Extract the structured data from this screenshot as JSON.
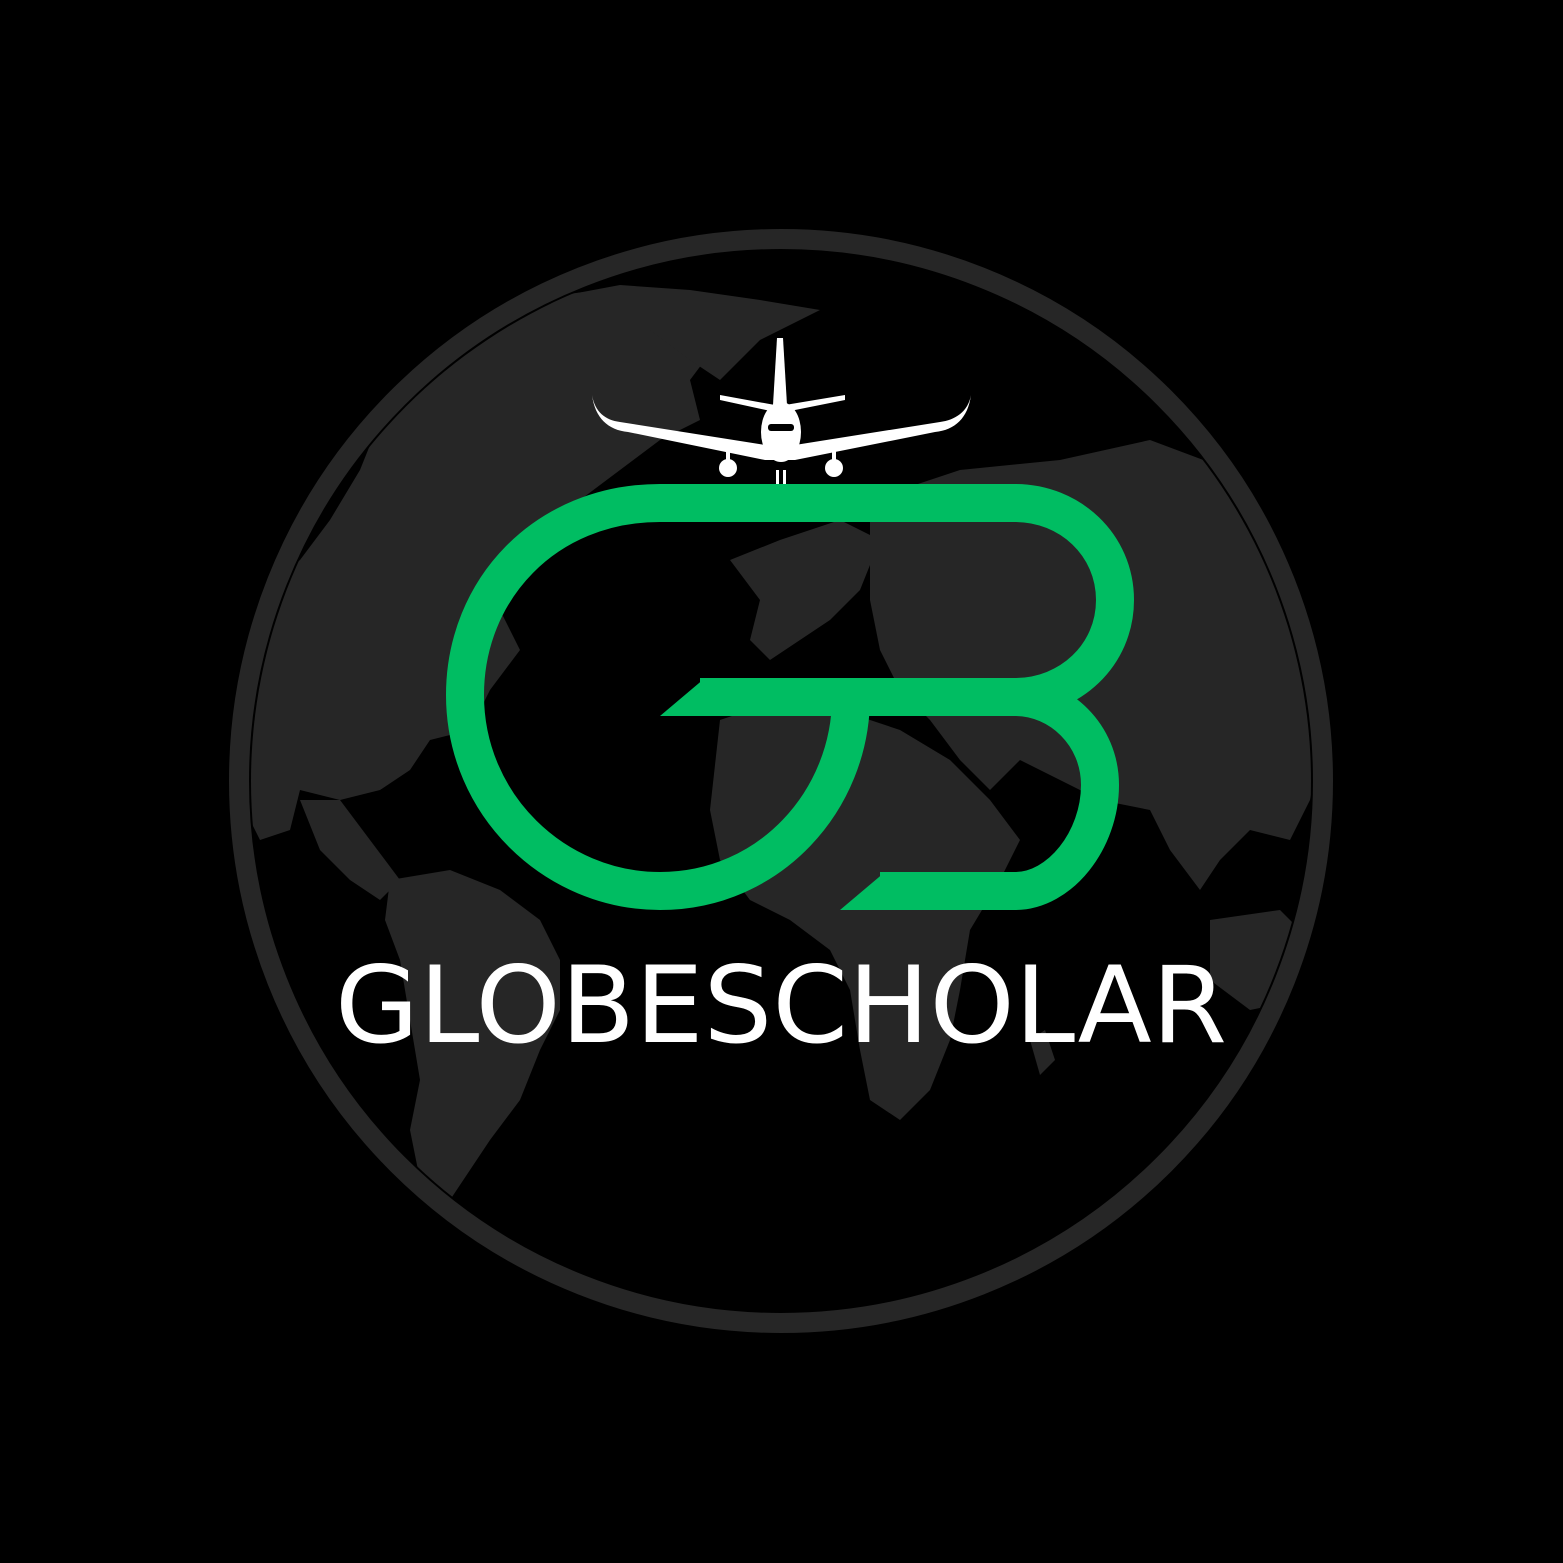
{
  "brand": {
    "name": "GLOBESCHOLAR"
  },
  "colors": {
    "background": "#000000",
    "globe": "#262626",
    "globe_ring": "#262626",
    "monogram": "#00BD62",
    "airplane": "#FFFFFF",
    "wordmark": "#FFFFFF"
  },
  "icons": {
    "globe": "globe-icon",
    "airplane": "airplane-icon",
    "monogram": "gb-monogram-icon"
  }
}
